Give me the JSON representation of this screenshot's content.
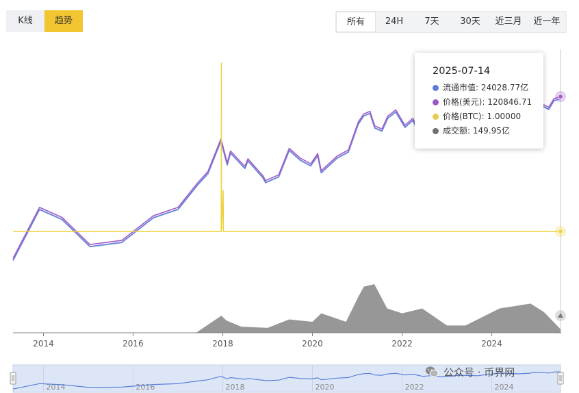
{
  "modes": [
    {
      "label": "K线",
      "active": false
    },
    {
      "label": "趋势",
      "active": true
    }
  ],
  "ranges": [
    {
      "label": "所有",
      "active": true
    },
    {
      "label": "24H",
      "active": false
    },
    {
      "label": "7天",
      "active": false
    },
    {
      "label": "30天",
      "active": false
    },
    {
      "label": "近三月",
      "active": false
    },
    {
      "label": "近一年",
      "active": false
    }
  ],
  "tooltip": {
    "date": "2025-07-14",
    "rows": [
      {
        "label": "流通市值: 24028.77亿",
        "color": "#5b7fd6"
      },
      {
        "label": "价格(美元): 120846.71",
        "color": "#9b59c6"
      },
      {
        "label": "价格(BTC): 1.00000",
        "color": "#e8cc4f"
      },
      {
        "label": "成交额: 149.95亿",
        "color": "#707070"
      }
    ]
  },
  "watermark": {
    "text": "公众号 · 币界网",
    "icon": "wechat-icon"
  },
  "colors": {
    "market_cap": "#6b86d6",
    "price_usd": "#a25bc9",
    "price_btc": "#ecd23c",
    "volume": "#8c8c8c",
    "navigator_fill": "#dde6f6",
    "navigator_line": "#5a7fd8"
  },
  "chart_data": {
    "type": "line",
    "x_axis": {
      "type": "date",
      "range": [
        "2013-04-28",
        "2025-07-14"
      ],
      "tick_labels": [
        "2014",
        "2016",
        "2018",
        "2020",
        "2022",
        "2024"
      ]
    },
    "y_axis": {
      "scale": "log",
      "range_usd": [
        50,
        125000
      ],
      "labels_visible": false
    },
    "grid": false,
    "legend": "none",
    "series": [
      {
        "key": "price_usd",
        "points": [
          [
            "2013-04-28",
            110
          ],
          [
            "2013-11-30",
            1000
          ],
          [
            "2014-06-01",
            650
          ],
          [
            "2015-01-15",
            200
          ],
          [
            "2015-10-01",
            240
          ],
          [
            "2016-06-15",
            700
          ],
          [
            "2017-01-01",
            1000
          ],
          [
            "2017-06-10",
            2900
          ],
          [
            "2017-09-01",
            4700
          ],
          [
            "2017-12-17",
            19500
          ],
          [
            "2018-02-06",
            6900
          ],
          [
            "2018-03-05",
            11500
          ],
          [
            "2018-06-30",
            5900
          ],
          [
            "2018-07-25",
            8200
          ],
          [
            "2018-11-25",
            3900
          ],
          [
            "2018-12-15",
            3200
          ],
          [
            "2019-04-01",
            4100
          ],
          [
            "2019-06-26",
            12900
          ],
          [
            "2019-09-25",
            8400
          ],
          [
            "2019-12-18",
            6600
          ],
          [
            "2020-02-13",
            10300
          ],
          [
            "2020-03-13",
            4900
          ],
          [
            "2020-07-20",
            9200
          ],
          [
            "2020-10-20",
            12000
          ],
          [
            "2021-01-08",
            40000
          ],
          [
            "2021-02-21",
            57000
          ],
          [
            "2021-04-14",
            64000
          ],
          [
            "2021-05-23",
            34000
          ],
          [
            "2021-07-20",
            29800
          ],
          [
            "2021-09-06",
            52000
          ],
          [
            "2021-11-10",
            68000
          ],
          [
            "2022-01-24",
            35000
          ],
          [
            "2022-03-29",
            47400
          ],
          [
            "2022-06-18",
            19000
          ],
          [
            "2022-08-15",
            24400
          ],
          [
            "2022-11-21",
            15700
          ],
          [
            "2023-04-14",
            30400
          ],
          [
            "2023-09-11",
            25000
          ],
          [
            "2023-12-05",
            44000
          ],
          [
            "2024-03-14",
            73000
          ],
          [
            "2024-08-05",
            54000
          ],
          [
            "2024-11-05",
            69000
          ],
          [
            "2024-12-17",
            106000
          ],
          [
            "2025-04-08",
            76000
          ],
          [
            "2025-05-22",
            111000
          ],
          [
            "2025-07-14",
            120846.71
          ]
        ]
      },
      {
        "key": "price_btc",
        "points": [
          [
            "2013-04-28",
            1
          ],
          [
            "2017-12-19",
            1
          ],
          [
            "2017-12-20",
            120
          ],
          [
            "2017-12-21",
            1
          ],
          [
            "2018-01-04",
            30
          ],
          [
            "2018-01-06",
            1
          ],
          [
            "2025-07-14",
            1
          ]
        ]
      },
      {
        "key": "volume",
        "unit": "亿",
        "points": [
          [
            "2013-04-28",
            0.01
          ],
          [
            "2016-01-01",
            0.3
          ],
          [
            "2017-06-01",
            15
          ],
          [
            "2017-12-20",
            700
          ],
          [
            "2018-02-01",
            500
          ],
          [
            "2018-06-01",
            250
          ],
          [
            "2019-01-01",
            200
          ],
          [
            "2019-06-26",
            550
          ],
          [
            "2020-01-01",
            450
          ],
          [
            "2020-03-13",
            800
          ],
          [
            "2020-10-01",
            450
          ],
          [
            "2021-01-11",
            1500
          ],
          [
            "2021-02-23",
            1900
          ],
          [
            "2021-05-19",
            2000
          ],
          [
            "2021-09-01",
            1000
          ],
          [
            "2022-01-01",
            800
          ],
          [
            "2022-06-13",
            1000
          ],
          [
            "2023-01-01",
            300
          ],
          [
            "2023-06-01",
            300
          ],
          [
            "2024-03-05",
            1000
          ],
          [
            "2024-11-12",
            1200
          ],
          [
            "2025-03-01",
            850
          ],
          [
            "2025-07-14",
            149.95
          ]
        ]
      }
    ]
  }
}
